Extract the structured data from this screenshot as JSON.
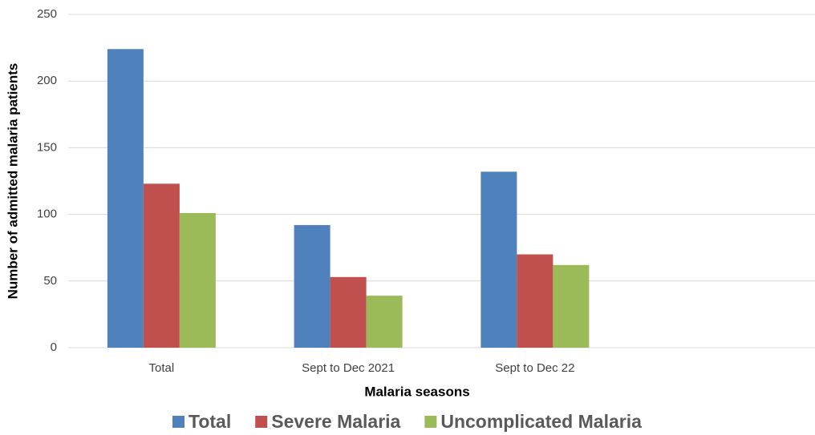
{
  "chart_data": {
    "type": "bar",
    "x_label": "Malaria seasons",
    "y_label": "Number of admitted malaria patients",
    "categories": [
      "Total",
      "Sept to Dec 2021",
      "Sept to Dec 22",
      null
    ],
    "series": [
      {
        "name": "Total",
        "color": "#4f81bd",
        "values": [
          224,
          92,
          132,
          null
        ]
      },
      {
        "name": "Severe Malaria",
        "color": "#c0504d",
        "values": [
          123,
          53,
          70,
          null
        ]
      },
      {
        "name": "Uncomplicated Malaria",
        "color": "#9bbb59",
        "values": [
          101,
          39,
          62,
          null
        ]
      }
    ],
    "ylim": [
      0,
      250
    ],
    "yticks": [
      0,
      50,
      100,
      150,
      200,
      250
    ],
    "grid": true,
    "legend": "bottom"
  }
}
